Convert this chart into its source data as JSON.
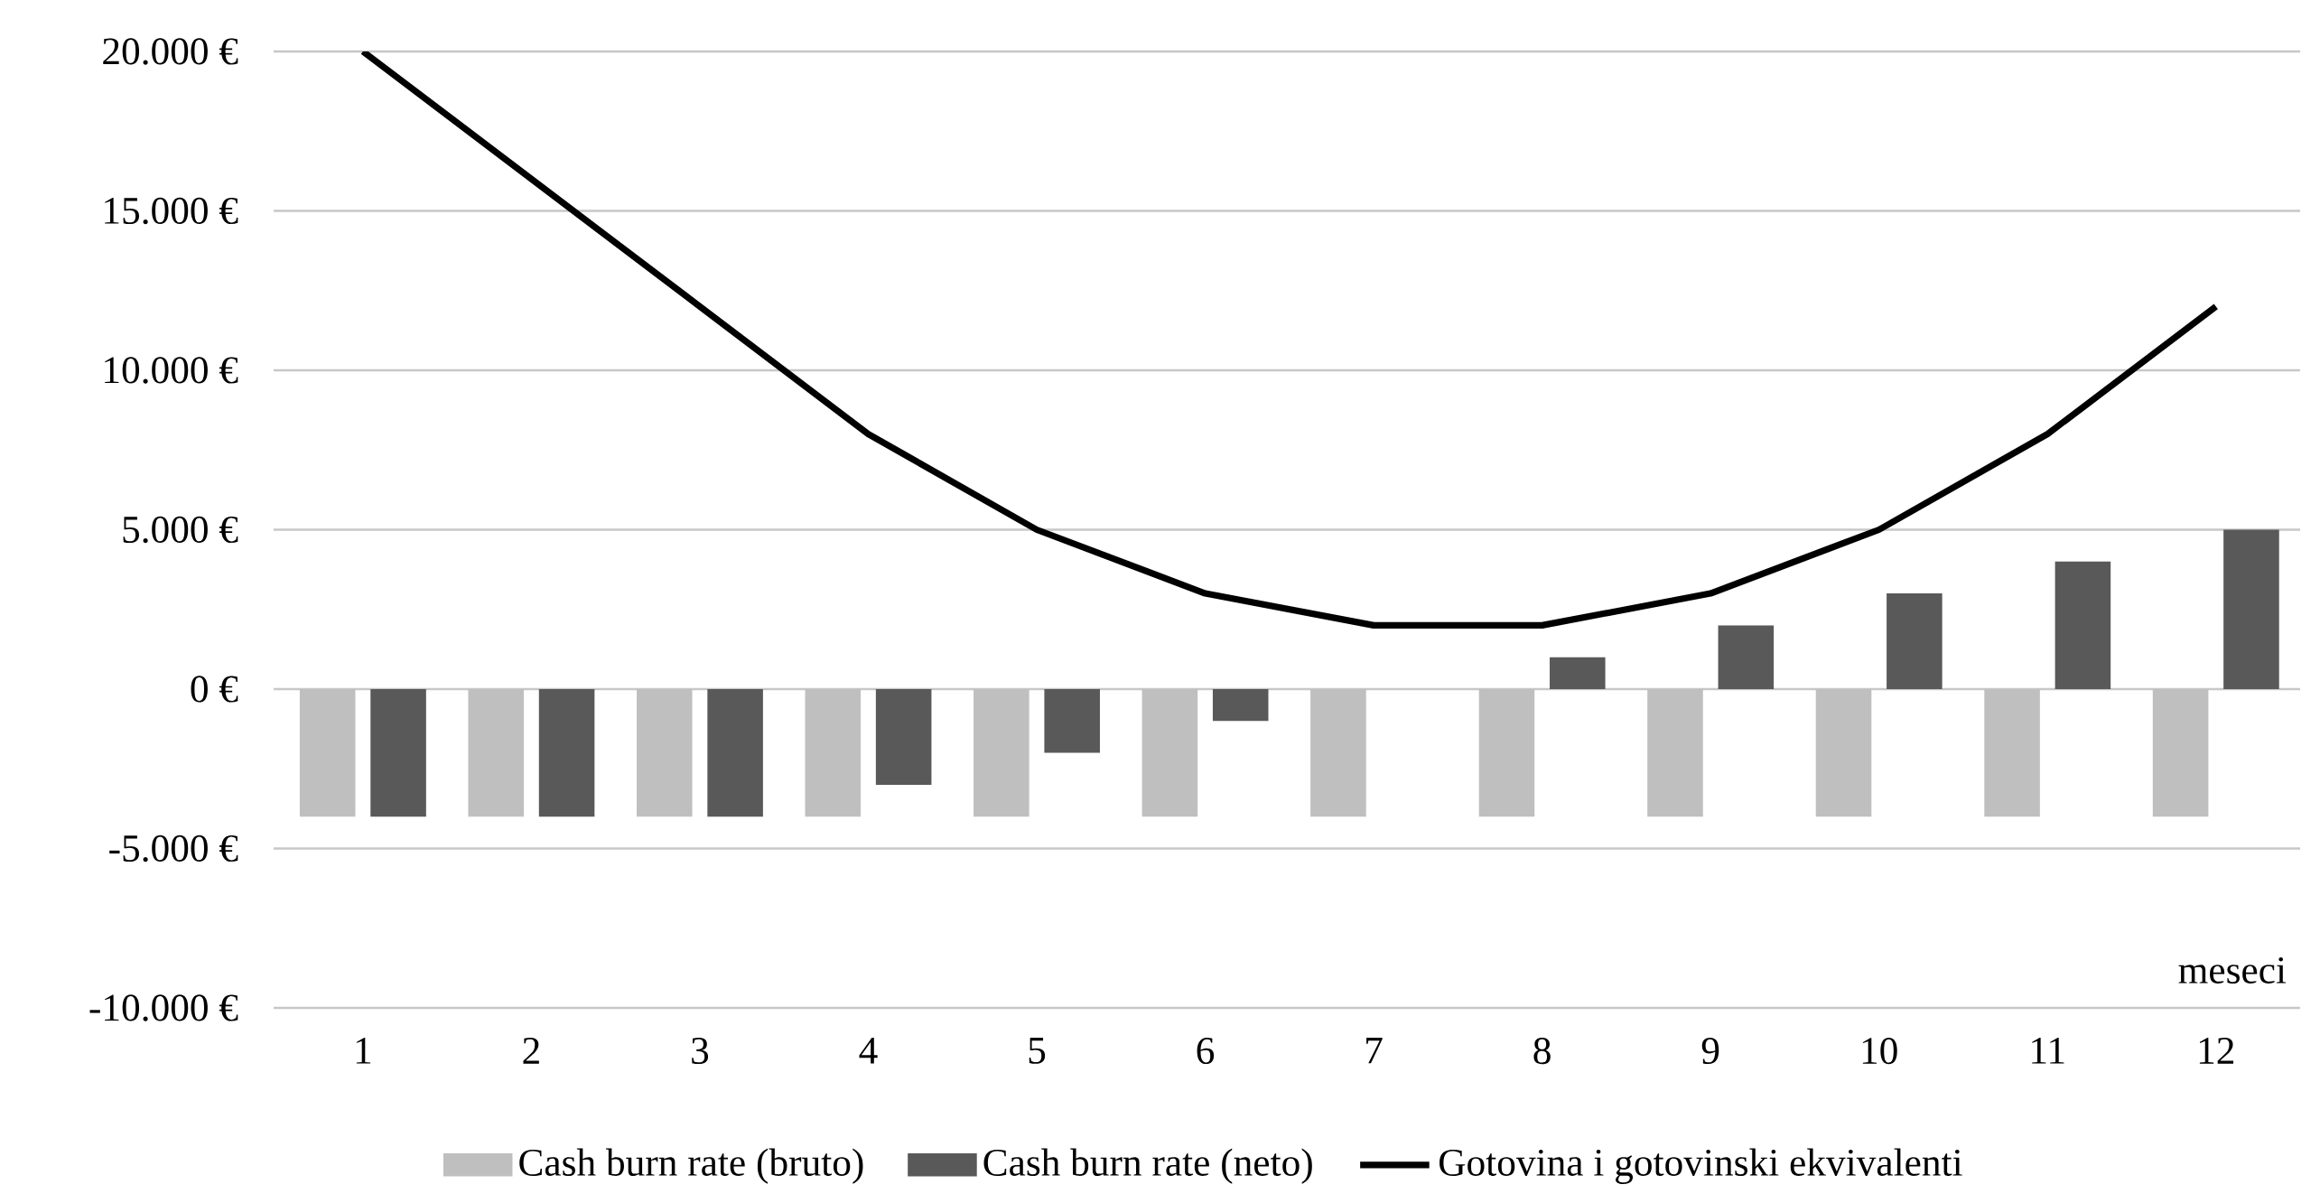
{
  "chart_data": {
    "type": "bar",
    "xlabel": "meseci",
    "categories": [
      "1",
      "2",
      "3",
      "4",
      "5",
      "6",
      "7",
      "8",
      "9",
      "10",
      "11",
      "12"
    ],
    "series": [
      {
        "name": "Cash burn rate (bruto)",
        "color": "#bfbfbf",
        "values": [
          -4000,
          -4000,
          -4000,
          -4000,
          -4000,
          -4000,
          -4000,
          -4000,
          -4000,
          -4000,
          -4000,
          -4000
        ]
      },
      {
        "name": "Cash burn rate (neto)",
        "color": "#595959",
        "values": [
          -4000,
          -4000,
          -4000,
          -3000,
          -2000,
          -1000,
          0,
          1000,
          2000,
          3000,
          4000,
          5000
        ]
      },
      {
        "name": "Gotovina i gotovinski ekvivalenti",
        "type": "line",
        "color": "#000000",
        "values": [
          20000,
          16000,
          12000,
          8000,
          5000,
          3000,
          2000,
          2000,
          3000,
          5000,
          8000,
          12000
        ]
      }
    ],
    "ylim": [
      -10000,
      20000
    ],
    "yticks": [
      {
        "value": -10000,
        "label": "-10.000 €"
      },
      {
        "value": -5000,
        "label": "-5.000 €"
      },
      {
        "value": 0,
        "label": "0 €"
      },
      {
        "value": 5000,
        "label": "5.000 €"
      },
      {
        "value": 10000,
        "label": "10.000 €"
      },
      {
        "value": 15000,
        "label": "15.000 €"
      },
      {
        "value": 20000,
        "label": "20.000 €"
      }
    ],
    "grid": "y",
    "legend": "bottom",
    "marker": "none",
    "line_style": "solid"
  }
}
